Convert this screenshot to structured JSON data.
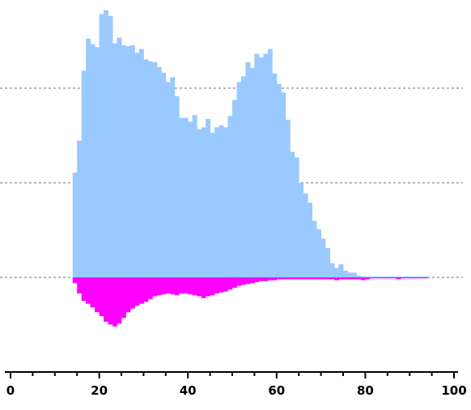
{
  "chart_data": {
    "type": "bar",
    "xlim": [
      0,
      100
    ],
    "x_ticks": [
      0,
      20,
      40,
      60,
      80,
      100
    ],
    "x_tick_labels": [
      "0",
      "20",
      "40",
      "60",
      "80",
      "100"
    ],
    "bin_width": 1,
    "bin_start": 14,
    "grid": "horizontal dotted",
    "up_color": "#99c9ff",
    "down_color": "#ff00ff",
    "series": [
      {
        "direction": "up",
        "values": [
          1.11,
          1.45,
          2.19,
          2.53,
          2.47,
          2.44,
          2.79,
          2.83,
          2.77,
          2.48,
          2.54,
          2.46,
          2.45,
          2.46,
          2.38,
          2.42,
          2.31,
          2.29,
          2.28,
          2.23,
          2.17,
          2.07,
          2.12,
          1.92,
          1.69,
          1.69,
          1.65,
          1.72,
          1.57,
          1.59,
          1.68,
          1.53,
          1.59,
          1.61,
          1.59,
          1.71,
          1.88,
          2.07,
          2.13,
          2.28,
          2.22,
          2.37,
          2.33,
          2.37,
          2.42,
          2.16,
          2.05,
          1.96,
          1.67,
          1.33,
          1.27,
          1.0,
          0.89,
          0.79,
          0.6,
          0.51,
          0.41,
          0.31,
          0.15,
          0.1,
          0.14,
          0.07,
          0.05,
          0.05,
          0.02,
          0.01,
          0.01,
          0.01,
          0.01,
          0.01,
          0.01,
          0.01,
          0.01,
          0.01,
          0.01,
          0.01,
          0.01,
          0.01,
          0.01,
          0.01
        ]
      },
      {
        "direction": "down",
        "values": [
          0.06,
          0.17,
          0.25,
          0.28,
          0.32,
          0.37,
          0.41,
          0.47,
          0.5,
          0.52,
          0.49,
          0.43,
          0.37,
          0.33,
          0.3,
          0.28,
          0.26,
          0.23,
          0.2,
          0.19,
          0.18,
          0.17,
          0.18,
          0.19,
          0.17,
          0.17,
          0.18,
          0.19,
          0.2,
          0.22,
          0.2,
          0.19,
          0.17,
          0.16,
          0.15,
          0.13,
          0.11,
          0.09,
          0.08,
          0.07,
          0.06,
          0.05,
          0.04,
          0.04,
          0.03,
          0.03,
          0.02,
          0.02,
          0.02,
          0.02,
          0.02,
          0.02,
          0.02,
          0.02,
          0.02,
          0.02,
          0.02,
          0.02,
          0.02,
          0.03,
          0.02,
          0.02,
          0.02,
          0.02,
          0.02,
          0.03,
          0.02,
          0.01,
          0.01,
          0.01,
          0.01,
          0.01,
          0.01,
          0.02,
          0.01,
          0.01,
          0.01,
          0.01,
          0.01,
          0.01
        ]
      }
    ]
  }
}
